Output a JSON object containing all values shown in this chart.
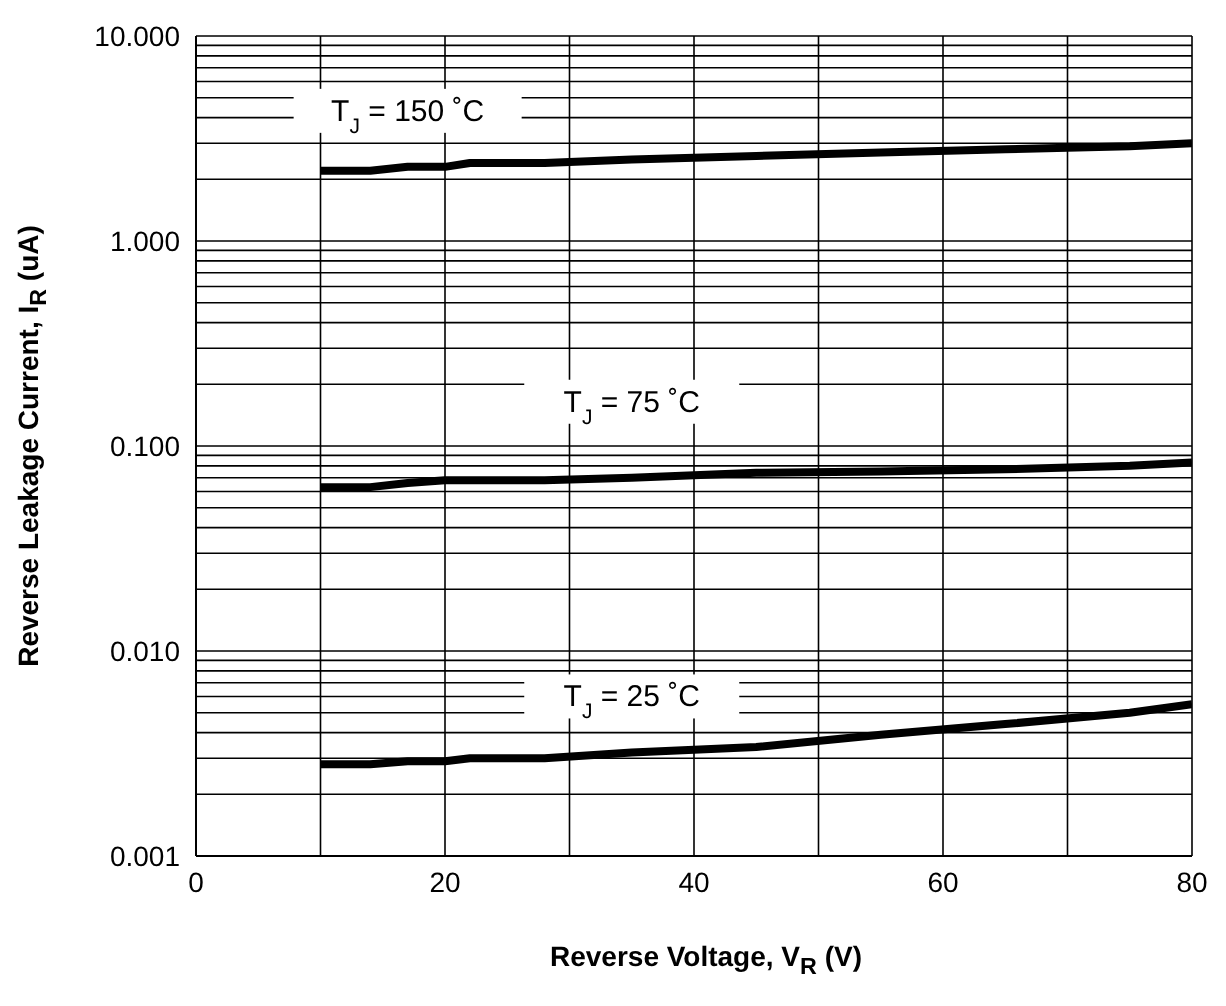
{
  "chart_data": {
    "type": "line",
    "xlabel": "Reverse Voltage, V$_{R}$ (V)",
    "ylabel": "Reverse Leakage Current, I$_{R}$ (uA)",
    "x": [
      10,
      14,
      17,
      20,
      22,
      28,
      35,
      45,
      55,
      65,
      75,
      80
    ],
    "series": [
      {
        "name": "T$_{J}$ = 150 ˚C",
        "color": "#000000",
        "values": [
          2.2,
          2.2,
          2.3,
          2.3,
          2.4,
          2.4,
          2.5,
          2.6,
          2.7,
          2.8,
          2.9,
          3.0
        ]
      },
      {
        "name": "T$_{J}$ = 75 ˚C",
        "color": "#000000",
        "values": [
          0.063,
          0.063,
          0.066,
          0.068,
          0.068,
          0.068,
          0.07,
          0.074,
          0.075,
          0.077,
          0.08,
          0.083
        ]
      },
      {
        "name": "T$_{J}$ = 25 ˚C",
        "color": "#000000",
        "values": [
          0.0028,
          0.0028,
          0.0029,
          0.0029,
          0.003,
          0.003,
          0.0032,
          0.0034,
          0.0039,
          0.0044,
          0.005,
          0.0055
        ]
      }
    ],
    "log": "y",
    "grid": true,
    "marker": "none",
    "line_style": "solid",
    "xlim": [
      0,
      80
    ],
    "xticks": [
      0,
      {
        "value": 10,
        "label": null
      },
      20,
      {
        "value": 30,
        "label": null
      },
      40,
      {
        "value": 50,
        "label": null
      },
      60,
      {
        "value": 70,
        "label": null
      },
      80
    ],
    "ylim": [
      0.001,
      10
    ],
    "yticks": [
      {
        "value": 0.001,
        "label": "0.001"
      },
      {
        "value": 0.002,
        "label": null
      },
      {
        "value": 0.003,
        "label": null
      },
      {
        "value": 0.004,
        "label": null
      },
      {
        "value": 0.005,
        "label": null
      },
      {
        "value": 0.006,
        "label": null
      },
      {
        "value": 0.007,
        "label": null
      },
      {
        "value": 0.008,
        "label": null
      },
      {
        "value": 0.009,
        "label": null
      },
      {
        "value": 0.01,
        "label": "0.010"
      },
      {
        "value": 0.02,
        "label": null
      },
      {
        "value": 0.03,
        "label": null
      },
      {
        "value": 0.04,
        "label": null
      },
      {
        "value": 0.05,
        "label": null
      },
      {
        "value": 0.06,
        "label": null
      },
      {
        "value": 0.07,
        "label": null
      },
      {
        "value": 0.08,
        "label": null
      },
      {
        "value": 0.09,
        "label": null
      },
      {
        "value": 0.1,
        "label": "0.100"
      },
      {
        "value": 0.2,
        "label": null
      },
      {
        "value": 0.3,
        "label": null
      },
      {
        "value": 0.4,
        "label": null
      },
      {
        "value": 0.5,
        "label": null
      },
      {
        "value": 0.6,
        "label": null
      },
      {
        "value": 0.7,
        "label": null
      },
      {
        "value": 0.8,
        "label": null
      },
      {
        "value": 0.9,
        "label": null
      },
      {
        "value": 1,
        "label": "1.000"
      },
      {
        "value": 2,
        "label": null
      },
      {
        "value": 3,
        "label": null
      },
      {
        "value": 4,
        "label": null
      },
      {
        "value": 5,
        "label": null
      },
      {
        "value": 6,
        "label": null
      },
      {
        "value": 7,
        "label": null
      },
      {
        "value": 8,
        "label": null
      },
      {
        "value": 9,
        "label": null
      },
      {
        "value": 10,
        "label": "10.000"
      }
    ]
  }
}
